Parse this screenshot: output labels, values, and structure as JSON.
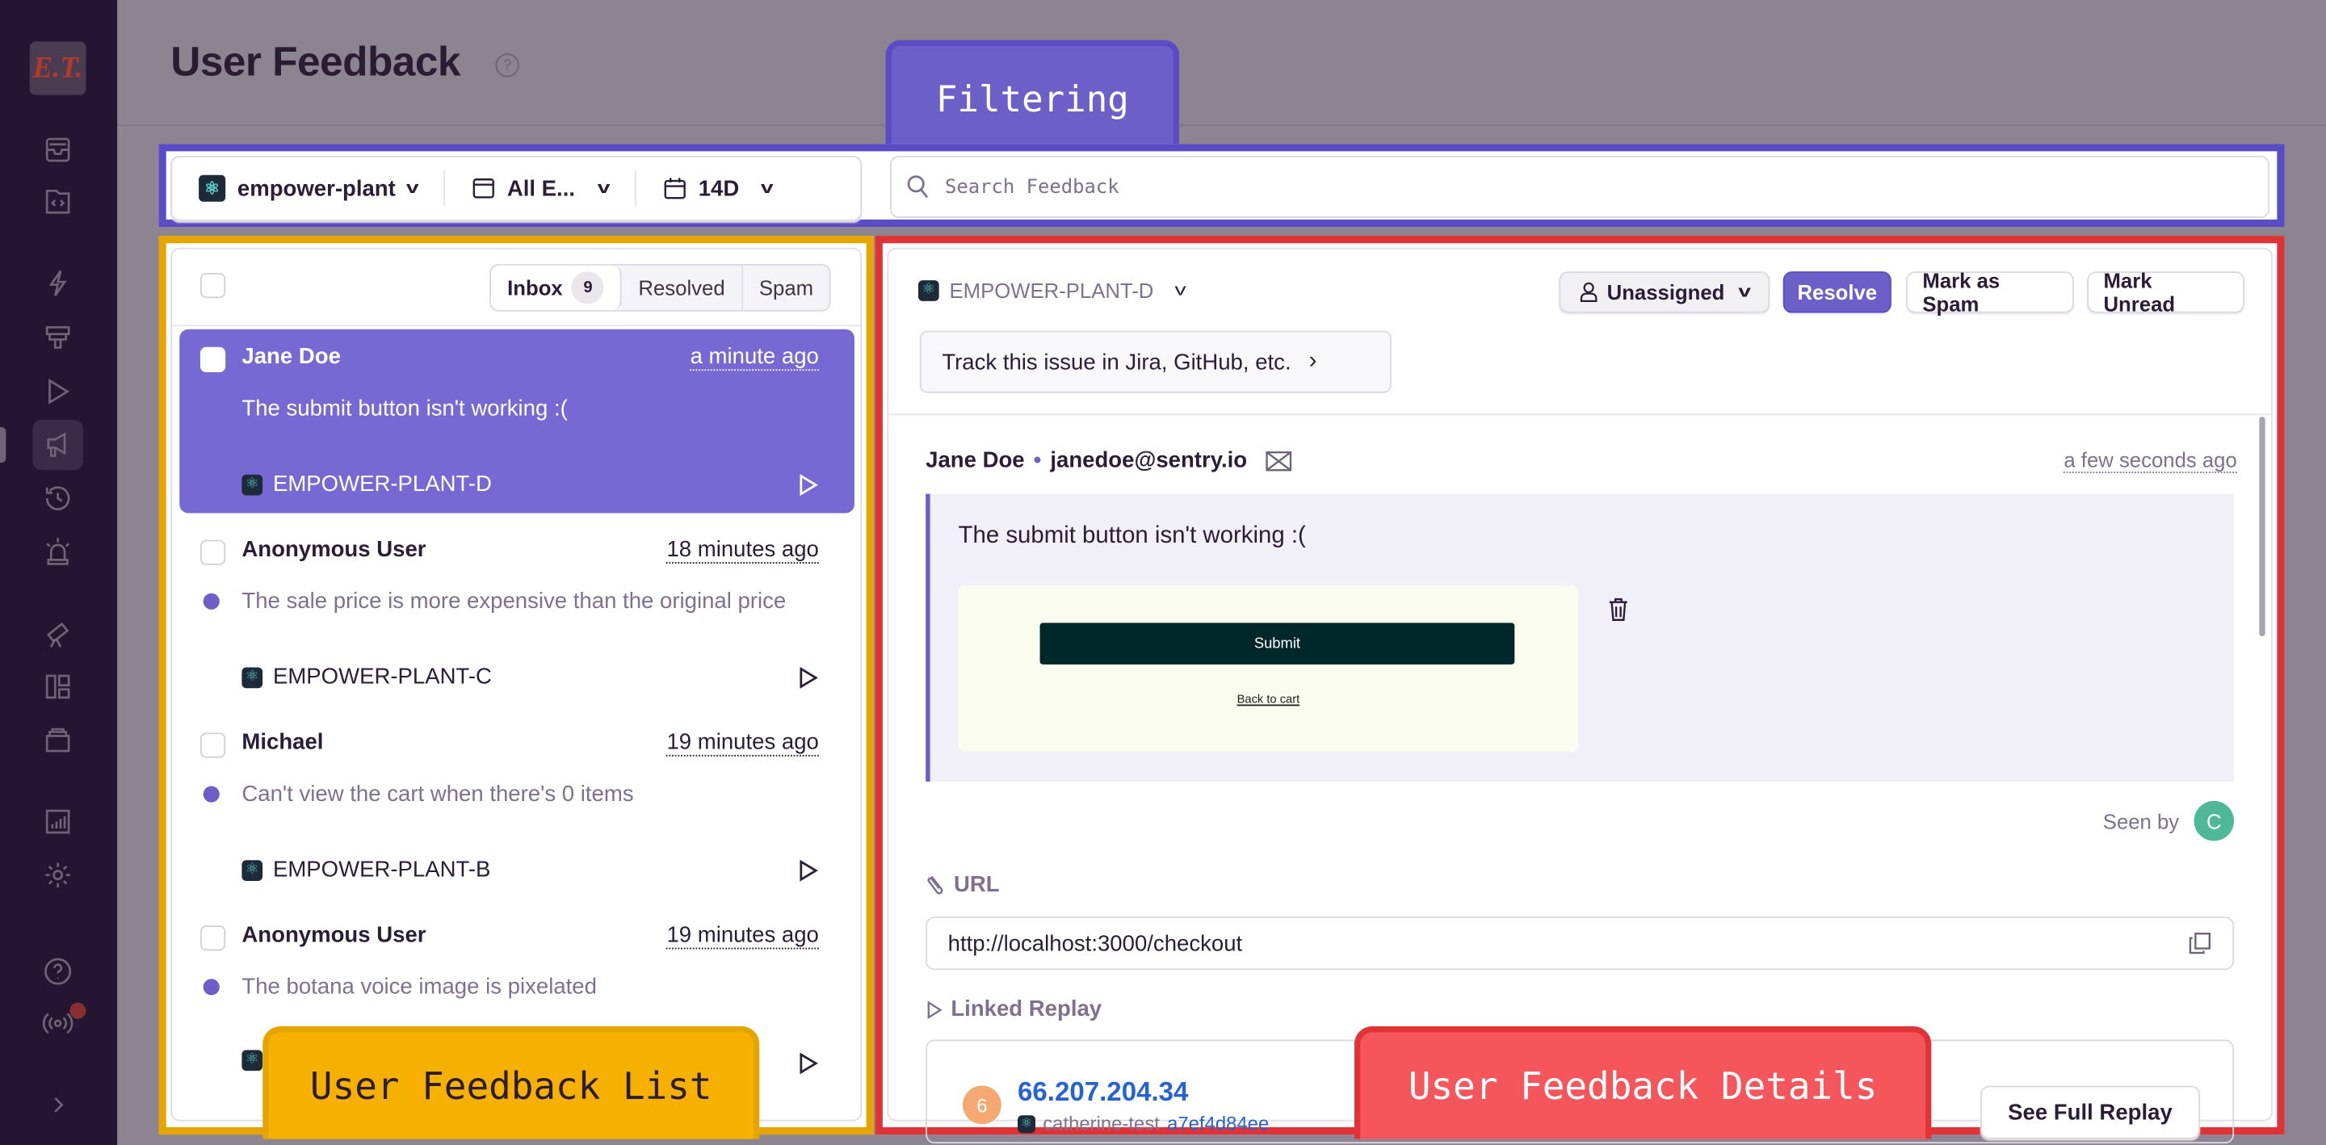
{
  "sidebar": {
    "logo": "E.T.",
    "icons": [
      "inbox-icon",
      "code-folder-icon",
      "lightning-icon",
      "alert-banner-icon",
      "play-icon",
      "megaphone-icon",
      "history-icon",
      "siren-icon",
      "telescope-icon",
      "dashboard-icon",
      "stack-icon",
      "stats-icon",
      "gear-icon",
      "help-icon",
      "broadcast-icon",
      "expand-icon"
    ],
    "active": "megaphone-icon"
  },
  "header": {
    "title": "User Feedback"
  },
  "filters": {
    "project": "empower-plant",
    "environment": "All E...",
    "date_range": "14D",
    "search_placeholder": "Search Feedback"
  },
  "annotations": {
    "filtering": "Filtering",
    "list": "User Feedback List",
    "details": "User Feedback Details",
    "colors": {
      "filtering": "#5a4cc4",
      "list": "#e5a500",
      "details": "#e03338"
    }
  },
  "list": {
    "tabs": [
      {
        "label": "Inbox",
        "count": "9",
        "selected": true
      },
      {
        "label": "Resolved"
      },
      {
        "label": "Spam"
      }
    ],
    "items": [
      {
        "name": "Jane Doe",
        "time": "a minute ago",
        "message": "The submit button isn't working :(",
        "issue": "EMPOWER-PLANT-D",
        "selected": true,
        "unread": false
      },
      {
        "name": "Anonymous User",
        "time": "18 minutes ago",
        "message": "The sale price is more expensive than the original price",
        "issue": "EMPOWER-PLANT-C",
        "unread": true
      },
      {
        "name": "Michael",
        "time": "19 minutes ago",
        "message": "Can't view the cart when there's 0 items",
        "issue": "EMPOWER-PLANT-B",
        "unread": true
      },
      {
        "name": "Anonymous User",
        "time": "19 minutes ago",
        "message": "The botana voice image is pixelated",
        "unread": true
      }
    ]
  },
  "details": {
    "issue": "EMPOWER-PLANT-D",
    "assignee": "Unassigned",
    "resolve": "Resolve",
    "mark_spam": "Mark as Spam",
    "mark_unread": "Mark Unread",
    "track": "Track this issue in Jira, GitHub, etc.",
    "name": "Jane Doe",
    "email": "janedoe@sentry.io",
    "time": "a few seconds ago",
    "message": "The submit button isn't working :(",
    "screenshot": {
      "button": "Submit",
      "link": "Back to cart"
    },
    "seen_by": "Seen by",
    "seen_avatar": "C",
    "url_label": "URL",
    "url": "http://localhost:3000/checkout",
    "linked_replay_label": "Linked Replay",
    "replay": {
      "avatar": "6",
      "ip": "66.207.204.34",
      "project": "catherine-test",
      "id": "a7ef4d84ee",
      "button": "See Full Replay"
    }
  }
}
